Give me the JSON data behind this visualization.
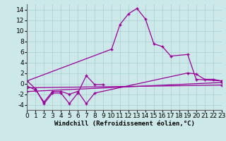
{
  "xlabel": "Windchill (Refroidissement éolien,°C)",
  "background_color": "#cce8e8",
  "grid_color": "#a8d0d0",
  "line_color": "#990099",
  "xlim": [
    0,
    23
  ],
  "ylim": [
    -5,
    15
  ],
  "xticks": [
    0,
    1,
    2,
    3,
    4,
    5,
    6,
    7,
    8,
    9,
    10,
    11,
    12,
    13,
    14,
    15,
    16,
    17,
    18,
    19,
    20,
    21,
    22,
    23
  ],
  "yticks": [
    -4,
    -2,
    0,
    2,
    4,
    6,
    8,
    10,
    12,
    14
  ],
  "line1_x": [
    0,
    1,
    2,
    3,
    4,
    5,
    6,
    7,
    8,
    9
  ],
  "line1_y": [
    0.5,
    -1.0,
    -3.8,
    -1.8,
    -1.8,
    -3.8,
    -1.8,
    1.5,
    -0.2,
    -0.2
  ],
  "line2_x": [
    0,
    10,
    11,
    12,
    13,
    14,
    15,
    16,
    17,
    19,
    20,
    23
  ],
  "line2_y": [
    0.5,
    6.5,
    11.2,
    13.2,
    14.2,
    12.2,
    7.5,
    7.0,
    5.2,
    5.5,
    0.8,
    0.5
  ],
  "line3_x": [
    0,
    23
  ],
  "line3_y": [
    -1.5,
    0.2
  ],
  "line4_x": [
    0,
    1,
    2,
    3,
    4,
    5,
    6,
    7,
    8,
    19,
    20,
    21,
    22,
    23
  ],
  "line4_y": [
    -0.5,
    -1.2,
    -3.5,
    -1.5,
    -1.5,
    -2.0,
    -1.5,
    -3.8,
    -1.8,
    2.0,
    1.8,
    0.8,
    0.8,
    0.5
  ],
  "line5_x": [
    0,
    23
  ],
  "line5_y": [
    -0.8,
    -0.3
  ],
  "xlabel_fontsize": 6.5,
  "tick_fontsize": 6.5
}
